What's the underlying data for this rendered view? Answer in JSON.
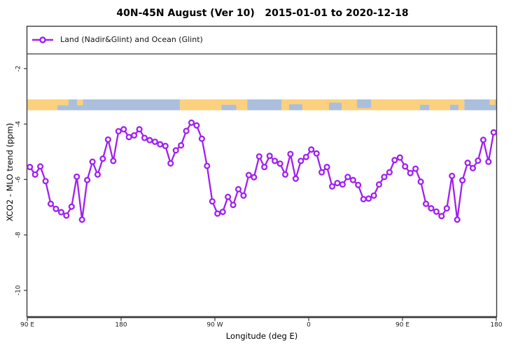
{
  "header": {
    "title": "40N-45N August (Ver 10)   2015-01-01 to 2020-12-18"
  },
  "legend": {
    "label": "Land (Nadir&Glint) and Ocean (Glint)",
    "position": "top-left"
  },
  "axes": {
    "xlabel": "Longitude (deg E)",
    "ylabel": "XCO2 - MLO trend (ppm)"
  },
  "colors": {
    "line": "#A020F0",
    "marker_fill": "#FFFFFF",
    "land": "#FBD07E",
    "ocean": "#AABFDC",
    "frame": "#3A3A3A",
    "tick_text": "#1A1A1A"
  },
  "chart_data": {
    "type": "line",
    "title": "40N-45N August (Ver 10)   2015-01-01 to 2020-12-18",
    "xlabel": "Longitude (deg E)",
    "ylabel": "XCO2 - MLO trend (ppm)",
    "grid": false,
    "legend_position": "top-left",
    "x_axis": {
      "range": [
        90,
        540
      ],
      "wraps_longitude": true,
      "ticks": [
        {
          "pos": 90,
          "label": "90 E"
        },
        {
          "pos": 180,
          "label": "180"
        },
        {
          "pos": 270,
          "label": "90 W"
        },
        {
          "pos": 360,
          "label": "0"
        },
        {
          "pos": 450,
          "label": "90 E"
        },
        {
          "pos": 540,
          "label": "180"
        }
      ]
    },
    "y_axis": {
      "range": [
        -10.9,
        -0.5
      ],
      "ticks": [
        -2,
        -4,
        -6,
        -8,
        -10
      ]
    },
    "series": [
      {
        "name": "Land (Nadir&Glint) and Ocean (Glint)",
        "lon_start": 92.5,
        "lon_step": 5,
        "values": [
          -5.55,
          -5.82,
          -5.53,
          -6.06,
          -6.88,
          -7.06,
          -7.18,
          -7.3,
          -6.98,
          -5.9,
          -7.45,
          -6.02,
          -5.36,
          -5.82,
          -5.25,
          -4.56,
          -5.33,
          -4.26,
          -4.19,
          -4.47,
          -4.41,
          -4.19,
          -4.5,
          -4.58,
          -4.64,
          -4.73,
          -4.79,
          -5.42,
          -4.95,
          -4.77,
          -4.25,
          -3.95,
          -4.05,
          -4.53,
          -5.51,
          -6.79,
          -7.23,
          -7.17,
          -6.63,
          -6.92,
          -6.35,
          -6.58,
          -5.84,
          -5.92,
          -5.17,
          -5.55,
          -5.15,
          -5.33,
          -5.43,
          -5.82,
          -5.08,
          -5.97,
          -5.33,
          -5.19,
          -4.92,
          -5.06,
          -5.74,
          -5.55,
          -6.25,
          -6.13,
          -6.18,
          -5.91,
          -6.02,
          -6.2,
          -6.71,
          -6.69,
          -6.58,
          -6.18,
          -5.91,
          -5.74,
          -5.3,
          -5.21,
          -5.53,
          -5.77,
          -5.61,
          -6.08,
          -6.88,
          -7.04,
          -7.16,
          -7.32,
          -7.04,
          -5.87,
          -7.45,
          -6.03,
          -5.4,
          -5.59,
          -5.32,
          -4.57,
          -5.36,
          -4.3
        ]
      }
    ],
    "map_strip": {
      "description": "land/ocean mask band for 40N-45N",
      "y_value_top": -3.1,
      "y_value_bottom": -3.5,
      "segments": [
        {
          "from": 90,
          "to": 129.6,
          "type": "land"
        },
        {
          "from": 119,
          "to": 129.6,
          "type": "ocean",
          "top": 0.55,
          "bot": 1
        },
        {
          "from": 129.6,
          "to": 146,
          "type": "ocean"
        },
        {
          "from": 137.7,
          "to": 143.5,
          "type": "land",
          "top": 0,
          "bot": 0.55
        },
        {
          "from": 146,
          "to": 236.5,
          "type": "ocean"
        },
        {
          "from": 236.5,
          "to": 301,
          "type": "land"
        },
        {
          "from": 276.5,
          "to": 290.5,
          "type": "ocean",
          "top": 0.5,
          "bot": 1
        },
        {
          "from": 301,
          "to": 333.8,
          "type": "ocean"
        },
        {
          "from": 333.8,
          "to": 509.3,
          "type": "land"
        },
        {
          "from": 341.2,
          "to": 353.9,
          "type": "ocean",
          "top": 0.45,
          "bot": 1
        },
        {
          "from": 379.5,
          "to": 391.6,
          "type": "ocean",
          "top": 0.3,
          "bot": 1
        },
        {
          "from": 406.4,
          "to": 419.8,
          "type": "ocean",
          "top": 0,
          "bot": 0.8
        },
        {
          "from": 466.9,
          "to": 475.6,
          "type": "ocean",
          "top": 0.5,
          "bot": 1
        },
        {
          "from": 495.7,
          "to": 503.7,
          "type": "ocean",
          "top": 0.5,
          "bot": 1
        },
        {
          "from": 509.3,
          "to": 540,
          "type": "ocean"
        },
        {
          "from": 533.5,
          "to": 539,
          "type": "land",
          "top": 0,
          "bot": 0.5
        }
      ]
    }
  }
}
